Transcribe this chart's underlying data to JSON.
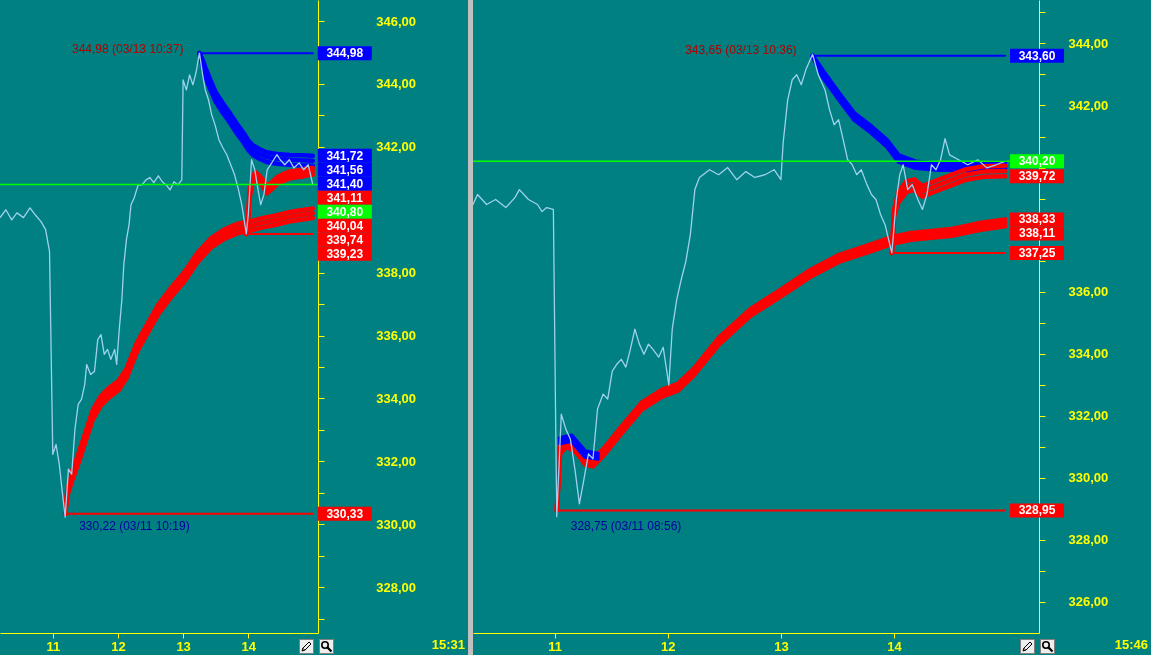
{
  "chart_data": [
    {
      "type": "line",
      "xlim": [
        10.19,
        15.07
      ],
      "ylim": [
        326.54,
        346.67
      ],
      "xticks": [
        11,
        12,
        13,
        14
      ],
      "yticks": [
        {
          "value": 327,
          "label": null
        },
        {
          "value": 328,
          "label": "328,00"
        },
        {
          "value": 329,
          "label": null
        },
        {
          "value": 330,
          "label": "330,00"
        },
        {
          "value": 331,
          "label": null
        },
        {
          "value": 332,
          "label": "332,00"
        },
        {
          "value": 333,
          "label": null
        },
        {
          "value": 334,
          "label": "334,00"
        },
        {
          "value": 335,
          "label": null
        },
        {
          "value": 336,
          "label": "336,00"
        },
        {
          "value": 337,
          "label": null
        },
        {
          "value": 338,
          "label": "338,00"
        },
        {
          "value": 339,
          "label": null
        },
        {
          "value": 340,
          "label": null
        },
        {
          "value": 341,
          "label": null
        },
        {
          "value": 342,
          "label": "342,00"
        },
        {
          "value": 343,
          "label": null
        },
        {
          "value": 344,
          "label": "344,00"
        },
        {
          "value": 345,
          "label": null
        },
        {
          "value": 346,
          "label": "346,00"
        }
      ],
      "series": [
        {
          "color": "#9fd0ef",
          "x": [
            10.19,
            10.28,
            10.37,
            10.45,
            10.55,
            10.65,
            10.73,
            10.82,
            10.89,
            10.95,
            11.0,
            11.05,
            11.1,
            11.15,
            11.19,
            11.24,
            11.29,
            11.34,
            11.39,
            11.44,
            11.49,
            11.52,
            11.58,
            11.64,
            11.69,
            11.74,
            11.79,
            11.84,
            11.89,
            11.95,
            11.98,
            12.02,
            12.06,
            12.09,
            12.13,
            12.17,
            12.2,
            12.25,
            12.31,
            12.37,
            12.43,
            12.49,
            12.55,
            12.62,
            12.68,
            12.74,
            12.8,
            12.86,
            12.92,
            12.98,
            13.0,
            13.05,
            13.1,
            13.15,
            13.2,
            13.25,
            13.3,
            13.34,
            13.39,
            13.44,
            13.49,
            13.55,
            13.61,
            13.67,
            13.73,
            13.79,
            13.85,
            13.9,
            13.97,
            14.0,
            14.05,
            14.1,
            14.15,
            14.19,
            14.24,
            14.29,
            14.34,
            14.39,
            14.44,
            14.49,
            14.56,
            14.63,
            14.7,
            14.78,
            14.85,
            14.92,
            14.99
          ],
          "values": [
            339.75,
            340.0,
            339.68,
            339.9,
            339.75,
            340.06,
            339.84,
            339.62,
            339.37,
            338.67,
            332.22,
            332.54,
            331.9,
            330.95,
            330.22,
            331.75,
            331.59,
            333.02,
            333.81,
            333.97,
            334.44,
            335.08,
            334.76,
            334.86,
            335.87,
            336.03,
            335.4,
            335.56,
            335.24,
            335.56,
            335.08,
            336.19,
            337.14,
            338.25,
            339.05,
            339.52,
            340.16,
            340.38,
            340.79,
            340.79,
            340.95,
            341.02,
            340.86,
            341.08,
            340.89,
            340.79,
            340.63,
            340.89,
            340.79,
            340.95,
            344.13,
            343.81,
            344.29,
            343.97,
            344.38,
            344.98,
            344.29,
            343.81,
            343.49,
            343.01,
            342.7,
            342.22,
            341.97,
            341.75,
            341.43,
            341.11,
            340.63,
            340.16,
            339.23,
            339.84,
            341.59,
            341.27,
            340.63,
            340.16,
            340.48,
            341.27,
            341.43,
            341.59,
            341.75,
            341.59,
            341.43,
            341.59,
            341.33,
            341.49,
            341.27,
            341.43,
            340.8
          ]
        },
        {
          "color": "#ff0000",
          "x": [
            11.19,
            11.22,
            11.3,
            11.4,
            11.49,
            11.61,
            11.73,
            11.85,
            12.01,
            12.13,
            12.29,
            12.46,
            12.62,
            12.8,
            13.02,
            13.22,
            13.43,
            13.62,
            13.83,
            14.04,
            14.23,
            14.44,
            14.64,
            14.83,
            14.99
          ],
          "values": [
            330.33,
            331.01,
            331.71,
            332.28,
            332.85,
            333.61,
            334.05,
            334.31,
            334.56,
            334.94,
            335.77,
            336.4,
            336.98,
            337.48,
            338.02,
            338.63,
            339.1,
            339.36,
            339.55,
            339.64,
            339.74,
            339.83,
            339.93,
            339.99,
            340.04
          ],
          "value_labels": [
            null,
            null,
            null,
            null,
            null,
            null,
            null,
            null,
            null,
            null,
            null,
            null,
            null,
            null,
            null,
            null,
            null,
            null,
            null,
            null,
            null,
            null,
            null,
            null,
            "340,04"
          ]
        },
        {
          "color": "#ff0000",
          "x": [
            11.19,
            11.22,
            11.3,
            11.4,
            11.49,
            11.61,
            11.73,
            11.85,
            12.01,
            12.13,
            12.29,
            12.46,
            12.62,
            12.8,
            13.02,
            13.22,
            13.43,
            13.62,
            13.83,
            14.04,
            14.23,
            14.44,
            14.64,
            14.83,
            14.99
          ],
          "values": [
            330.33,
            330.95,
            331.56,
            332.13,
            332.7,
            333.46,
            333.9,
            334.16,
            334.41,
            334.79,
            335.62,
            336.25,
            336.83,
            337.33,
            337.87,
            338.48,
            338.95,
            339.21,
            339.4,
            339.49,
            339.59,
            339.68,
            339.78,
            339.84,
            339.89
          ]
        },
        {
          "color": "#ff0000",
          "x": [
            11.19,
            11.22,
            11.3,
            11.4,
            11.49,
            11.61,
            11.73,
            11.85,
            12.01,
            12.13,
            12.29,
            12.46,
            12.62,
            12.8,
            13.02,
            13.22,
            13.43,
            13.62,
            13.83,
            14.04,
            14.23,
            14.44,
            14.64,
            14.83,
            14.99
          ],
          "values": [
            330.33,
            330.89,
            331.41,
            331.98,
            332.55,
            333.31,
            333.75,
            334.01,
            334.26,
            334.64,
            335.47,
            336.1,
            336.68,
            337.18,
            337.72,
            338.33,
            338.8,
            339.06,
            339.25,
            339.34,
            339.44,
            339.53,
            339.63,
            339.69,
            339.74
          ],
          "value_labels": [
            null,
            null,
            null,
            null,
            null,
            null,
            null,
            null,
            null,
            null,
            null,
            null,
            null,
            null,
            null,
            null,
            null,
            null,
            null,
            null,
            null,
            null,
            null,
            null,
            "339,74"
          ]
        },
        {
          "color": "#0000ff",
          "x": [
            13.25,
            13.3,
            13.34,
            13.42,
            13.5,
            13.6,
            13.71,
            13.81,
            13.92,
            14.0,
            14.07,
            14.17,
            14.28,
            14.44,
            14.64,
            14.83,
            14.99
          ],
          "values": [
            344.98,
            344.77,
            344.53,
            344.12,
            343.74,
            343.42,
            343.1,
            342.78,
            342.47,
            342.21,
            342.05,
            341.93,
            341.83,
            341.77,
            341.74,
            341.73,
            341.72
          ],
          "value_labels": [
            null,
            null,
            null,
            null,
            null,
            null,
            null,
            null,
            null,
            null,
            null,
            null,
            null,
            null,
            null,
            null,
            "341,72"
          ]
        },
        {
          "color": "#0000ff",
          "x": [
            13.25,
            13.3,
            13.34,
            13.42,
            13.5,
            13.6,
            13.71,
            13.81,
            13.92,
            14.0,
            14.07,
            14.17,
            14.28,
            14.44,
            14.64,
            14.83,
            14.99
          ],
          "values": [
            344.98,
            344.67,
            344.38,
            343.97,
            343.59,
            343.27,
            342.95,
            342.63,
            342.32,
            342.06,
            341.9,
            341.78,
            341.68,
            341.62,
            341.59,
            341.57,
            341.56
          ],
          "value_labels": [
            null,
            null,
            null,
            null,
            null,
            null,
            null,
            null,
            null,
            null,
            null,
            null,
            null,
            null,
            null,
            null,
            "341,56"
          ]
        },
        {
          "color": "#0000ff",
          "x": [
            13.25,
            13.3,
            13.34,
            13.42,
            13.5,
            13.6,
            13.71,
            13.81,
            13.92,
            14.0,
            14.07,
            14.17,
            14.28,
            14.44,
            14.64,
            14.83,
            14.99
          ],
          "values": [
            344.98,
            344.57,
            344.22,
            343.81,
            343.43,
            343.11,
            342.79,
            342.47,
            342.16,
            341.9,
            341.74,
            341.62,
            341.52,
            341.46,
            341.43,
            341.41,
            341.4
          ],
          "value_labels": [
            null,
            null,
            null,
            null,
            null,
            null,
            null,
            null,
            null,
            null,
            null,
            null,
            null,
            null,
            null,
            null,
            "341,40"
          ]
        },
        {
          "color": "#ff0000",
          "x": [
            13.97,
            14.0,
            14.02,
            14.06,
            14.11,
            14.17,
            14.23,
            14.28,
            14.34,
            14.44,
            14.53,
            14.64,
            14.74,
            14.84,
            14.92,
            14.99
          ],
          "values": [
            339.23,
            339.89,
            340.59,
            341.06,
            341.19,
            341.09,
            340.94,
            340.74,
            340.84,
            341.03,
            341.13,
            341.22,
            341.25,
            341.28,
            341.32,
            341.33
          ]
        },
        {
          "color": "#ff0000",
          "x": [
            13.97,
            14.0,
            14.02,
            14.06,
            14.11,
            14.17,
            14.23,
            14.28,
            14.34,
            14.44,
            14.53,
            14.64,
            14.74,
            14.84,
            14.92,
            14.99
          ],
          "values": [
            339.23,
            339.84,
            340.48,
            340.95,
            341.08,
            340.98,
            340.83,
            340.63,
            340.73,
            340.92,
            341.02,
            341.11,
            341.14,
            341.17,
            341.21,
            341.22
          ]
        },
        {
          "color": "#ff0000",
          "x": [
            13.97,
            14.0,
            14.02,
            14.06,
            14.11,
            14.17,
            14.23,
            14.28,
            14.34,
            14.44,
            14.53,
            14.64,
            14.74,
            14.84,
            14.92,
            14.99
          ],
          "values": [
            339.23,
            339.79,
            340.37,
            340.84,
            340.97,
            340.87,
            340.72,
            340.52,
            340.62,
            340.81,
            340.91,
            341.0,
            341.03,
            341.06,
            341.1,
            341.11
          ],
          "value_labels": [
            null,
            null,
            null,
            null,
            null,
            null,
            null,
            null,
            null,
            null,
            null,
            null,
            null,
            null,
            null,
            "341,11"
          ]
        },
        {
          "color": "#0000ff",
          "x": [
            13.25,
            14.99
          ],
          "values": [
            344.98,
            344.98
          ],
          "value_labels": [
            null,
            "344,98"
          ]
        },
        {
          "color": "#ff0000",
          "x": [
            13.97,
            14.99
          ],
          "values": [
            339.23,
            339.23
          ],
          "value_labels": [
            null,
            "339,23"
          ]
        },
        {
          "color": "#ff0000",
          "x": [
            11.19,
            14.99
          ],
          "values": [
            330.33,
            330.33
          ],
          "value_labels": [
            null,
            "330,33"
          ]
        }
      ],
      "ref_lines": [
        {
          "axis": "y",
          "value": 340.8,
          "label": "340,80",
          "color": "#00ff00"
        }
      ],
      "annotations": [
        {
          "text": "344,98 (03/13 10:37)",
          "x": 13.25,
          "y": 344.98
        },
        {
          "text": "330,22 (03/11 10:19)",
          "x": 11.19,
          "y": 330.22
        },
        "15:31"
      ]
    },
    {
      "type": "line",
      "xlim": [
        10.28,
        15.28
      ],
      "ylim": [
        325.0,
        345.4
      ],
      "xticks": [
        11,
        12,
        13,
        14
      ],
      "yticks": [
        {
          "value": 326,
          "label": "326,00"
        },
        {
          "value": 327,
          "label": null
        },
        {
          "value": 328,
          "label": "328,00"
        },
        {
          "value": 329,
          "label": null
        },
        {
          "value": 330,
          "label": "330,00"
        },
        {
          "value": 331,
          "label": null
        },
        {
          "value": 332,
          "label": "332,00"
        },
        {
          "value": 333,
          "label": null
        },
        {
          "value": 334,
          "label": "334,00"
        },
        {
          "value": 335,
          "label": null
        },
        {
          "value": 336,
          "label": "336,00"
        },
        {
          "value": 337,
          "label": null
        },
        {
          "value": 338,
          "label": null
        },
        {
          "value": 339,
          "label": null
        },
        {
          "value": 340,
          "label": null
        },
        {
          "value": 341,
          "label": null
        },
        {
          "value": 342,
          "label": "342,00"
        },
        {
          "value": 343,
          "label": null
        },
        {
          "value": 344,
          "label": "344,00"
        },
        {
          "value": 345,
          "label": null
        }
      ],
      "series": [
        {
          "color": "#9fd0ef",
          "x": [
            10.28,
            10.32,
            10.4,
            10.48,
            10.57,
            10.65,
            10.69,
            10.77,
            10.85,
            10.89,
            10.93,
            10.99,
            11.01,
            11.02,
            11.06,
            11.1,
            11.14,
            11.18,
            11.22,
            11.26,
            11.3,
            11.34,
            11.38,
            11.43,
            11.47,
            11.51,
            11.55,
            11.59,
            11.63,
            11.67,
            11.71,
            11.75,
            11.79,
            11.83,
            11.87,
            11.92,
            11.96,
            12.01,
            12.04,
            12.08,
            12.12,
            12.16,
            12.2,
            12.24,
            12.28,
            12.37,
            12.45,
            12.53,
            12.61,
            12.69,
            12.77,
            12.86,
            12.94,
            13.0,
            13.02,
            13.06,
            13.1,
            13.14,
            13.18,
            13.22,
            13.28,
            13.33,
            13.39,
            13.43,
            13.47,
            13.51,
            13.55,
            13.59,
            13.63,
            13.67,
            13.71,
            13.76,
            13.8,
            13.84,
            13.88,
            13.92,
            13.98,
            14.02,
            14.05,
            14.08,
            14.12,
            14.16,
            14.21,
            14.25,
            14.29,
            14.33,
            14.37,
            14.41,
            14.45,
            14.49,
            14.57,
            14.65,
            14.74,
            14.82,
            14.9,
            14.98
          ],
          "values": [
            338.81,
            339.13,
            338.81,
            338.97,
            338.71,
            339.03,
            339.29,
            338.97,
            338.81,
            338.58,
            338.71,
            338.65,
            331.89,
            328.75,
            332.05,
            331.57,
            331.25,
            330.29,
            329.16,
            329.96,
            330.77,
            330.61,
            332.22,
            332.7,
            332.54,
            333.44,
            333.66,
            333.82,
            333.57,
            334.14,
            334.79,
            334.31,
            333.98,
            334.31,
            334.14,
            333.89,
            334.21,
            332.99,
            334.79,
            335.75,
            336.4,
            336.97,
            337.84,
            339.29,
            339.68,
            339.93,
            339.77,
            340.0,
            339.61,
            339.87,
            339.68,
            339.77,
            339.93,
            339.61,
            340.8,
            342.18,
            342.83,
            342.99,
            342.67,
            343.15,
            343.65,
            342.99,
            342.5,
            341.86,
            341.38,
            341.54,
            340.9,
            340.25,
            340.09,
            339.77,
            339.93,
            339.45,
            339.13,
            338.97,
            338.49,
            338.16,
            337.25,
            338.97,
            339.77,
            340.09,
            339.29,
            339.45,
            338.97,
            338.65,
            339.13,
            340.09,
            339.93,
            340.25,
            340.93,
            340.41,
            340.25,
            340.09,
            340.25,
            339.99,
            340.09,
            340.2
          ]
        },
        {
          "color": "#ff0000",
          "x": [
            11.02,
            11.05,
            11.11,
            11.2,
            11.27,
            11.34,
            11.45,
            11.59,
            11.77,
            11.95,
            12.09,
            12.23,
            12.45,
            12.73,
            13.01,
            13.26,
            13.51,
            13.8,
            13.98,
            14.15,
            14.51,
            14.75,
            14.98
          ],
          "values": [
            328.95,
            331.01,
            331.23,
            331.01,
            330.65,
            330.59,
            331.01,
            331.65,
            332.42,
            332.84,
            333.03,
            333.52,
            334.51,
            335.44,
            336.09,
            336.7,
            337.18,
            337.53,
            337.76,
            337.89,
            338.02,
            338.21,
            338.33
          ],
          "value_labels": [
            null,
            null,
            null,
            null,
            null,
            null,
            null,
            null,
            null,
            null,
            null,
            null,
            null,
            null,
            null,
            null,
            null,
            null,
            null,
            null,
            null,
            null,
            "338,33"
          ]
        },
        {
          "color": "#ff0000",
          "x": [
            11.02,
            11.05,
            11.11,
            11.2,
            11.27,
            11.34,
            11.45,
            11.59,
            11.77,
            11.95,
            12.09,
            12.23,
            12.45,
            12.73,
            13.01,
            13.26,
            13.51,
            13.8,
            13.98,
            14.15,
            14.51,
            14.75,
            14.98
          ],
          "values": [
            328.95,
            330.9,
            331.12,
            330.9,
            330.54,
            330.48,
            330.9,
            331.54,
            332.31,
            332.73,
            332.92,
            333.41,
            334.4,
            335.33,
            335.98,
            336.59,
            337.07,
            337.42,
            337.65,
            337.78,
            337.91,
            338.1,
            338.22
          ]
        },
        {
          "color": "#ff0000",
          "x": [
            11.02,
            11.05,
            11.11,
            11.2,
            11.27,
            11.34,
            11.45,
            11.59,
            11.77,
            11.95,
            12.09,
            12.23,
            12.45,
            12.73,
            13.01,
            13.26,
            13.51,
            13.8,
            13.98,
            14.15,
            14.51,
            14.75,
            14.98
          ],
          "values": [
            328.95,
            330.79,
            331.01,
            330.79,
            330.43,
            330.37,
            330.79,
            331.43,
            332.2,
            332.62,
            332.81,
            333.3,
            334.29,
            335.22,
            335.87,
            336.48,
            336.96,
            337.31,
            337.54,
            337.67,
            337.8,
            337.99,
            338.11
          ],
          "value_labels": [
            null,
            null,
            null,
            null,
            null,
            null,
            null,
            null,
            null,
            null,
            null,
            null,
            null,
            null,
            null,
            null,
            null,
            null,
            null,
            null,
            null,
            null,
            "338,11"
          ]
        },
        {
          "color": "#0000ff",
          "x": [
            11.05,
            11.15,
            11.27,
            11.38
          ],
          "values": [
            331.28,
            331.36,
            330.85,
            330.78
          ]
        },
        {
          "color": "#0000ff",
          "x": [
            11.05,
            11.15,
            11.27,
            11.38
          ],
          "values": [
            331.2,
            331.28,
            330.77,
            330.7
          ]
        },
        {
          "color": "#0000ff",
          "x": [
            11.05,
            11.15,
            11.27,
            11.38
          ],
          "values": [
            331.12,
            331.2,
            330.69,
            330.62
          ]
        },
        {
          "color": "#0000ff",
          "x": [
            13.28,
            13.37,
            13.51,
            13.65,
            13.8,
            13.94,
            14.04,
            14.19,
            14.4,
            14.65,
            14.98
          ],
          "values": [
            343.6,
            343.12,
            342.41,
            341.74,
            341.32,
            340.87,
            340.39,
            340.19,
            340.13,
            340.13,
            340.16
          ]
        },
        {
          "color": "#0000ff",
          "x": [
            13.28,
            13.37,
            13.51,
            13.65,
            13.8,
            13.94,
            14.04,
            14.19,
            14.4,
            14.65,
            14.98
          ],
          "values": [
            343.6,
            343.02,
            342.31,
            341.64,
            341.22,
            340.77,
            340.29,
            340.09,
            340.03,
            340.03,
            340.06
          ]
        },
        {
          "color": "#0000ff",
          "x": [
            13.28,
            13.37,
            13.51,
            13.65,
            13.8,
            13.94,
            14.04,
            14.19,
            14.4,
            14.65,
            14.98
          ],
          "values": [
            343.6,
            342.92,
            342.21,
            341.54,
            341.12,
            340.67,
            340.19,
            339.99,
            339.93,
            339.93,
            339.96
          ]
        },
        {
          "color": "#ff0000",
          "x": [
            13.98,
            14.0,
            14.04,
            14.11,
            14.18,
            14.25,
            14.33,
            14.47,
            14.63,
            14.79,
            14.98
          ],
          "values": [
            337.25,
            338.65,
            339.23,
            339.56,
            339.62,
            339.4,
            339.52,
            339.72,
            339.94,
            340.04,
            340.06
          ]
        },
        {
          "color": "#ff0000",
          "x": [
            13.98,
            14.0,
            14.04,
            14.11,
            14.18,
            14.25,
            14.33,
            14.47,
            14.63,
            14.79,
            14.98
          ],
          "values": [
            337.25,
            338.55,
            339.06,
            339.39,
            339.45,
            339.23,
            339.35,
            339.55,
            339.77,
            339.87,
            339.89
          ]
        },
        {
          "color": "#ff0000",
          "x": [
            13.98,
            14.0,
            14.04,
            14.11,
            14.18,
            14.25,
            14.33,
            14.47,
            14.63,
            14.79,
            14.98
          ],
          "values": [
            337.25,
            338.45,
            338.89,
            339.22,
            339.28,
            339.06,
            339.18,
            339.38,
            339.6,
            339.7,
            339.72
          ],
          "value_labels": [
            null,
            null,
            null,
            null,
            null,
            null,
            null,
            null,
            null,
            null,
            "339,72"
          ]
        },
        {
          "color": "#0000ff",
          "x": [
            13.28,
            14.98
          ],
          "values": [
            343.6,
            343.6
          ],
          "value_labels": [
            null,
            "343,60"
          ]
        },
        {
          "color": "#ff0000",
          "x": [
            13.98,
            14.98
          ],
          "values": [
            337.25,
            337.25
          ],
          "value_labels": [
            null,
            "337,25"
          ]
        },
        {
          "color": "#ff0000",
          "x": [
            11.02,
            14.98
          ],
          "values": [
            328.95,
            328.95
          ],
          "value_labels": [
            null,
            "328,95"
          ]
        }
      ],
      "ref_lines": [
        {
          "axis": "y",
          "value": 340.2,
          "label": "340,20",
          "color": "#00ff00"
        }
      ],
      "annotations": [
        {
          "text": "343,65 (03/13 10:36)",
          "x": 13.28,
          "y": 343.65
        },
        {
          "text": "328,75 (03/11 08:56)",
          "x": 11.02,
          "y": 328.75
        },
        "15:46"
      ]
    }
  ]
}
